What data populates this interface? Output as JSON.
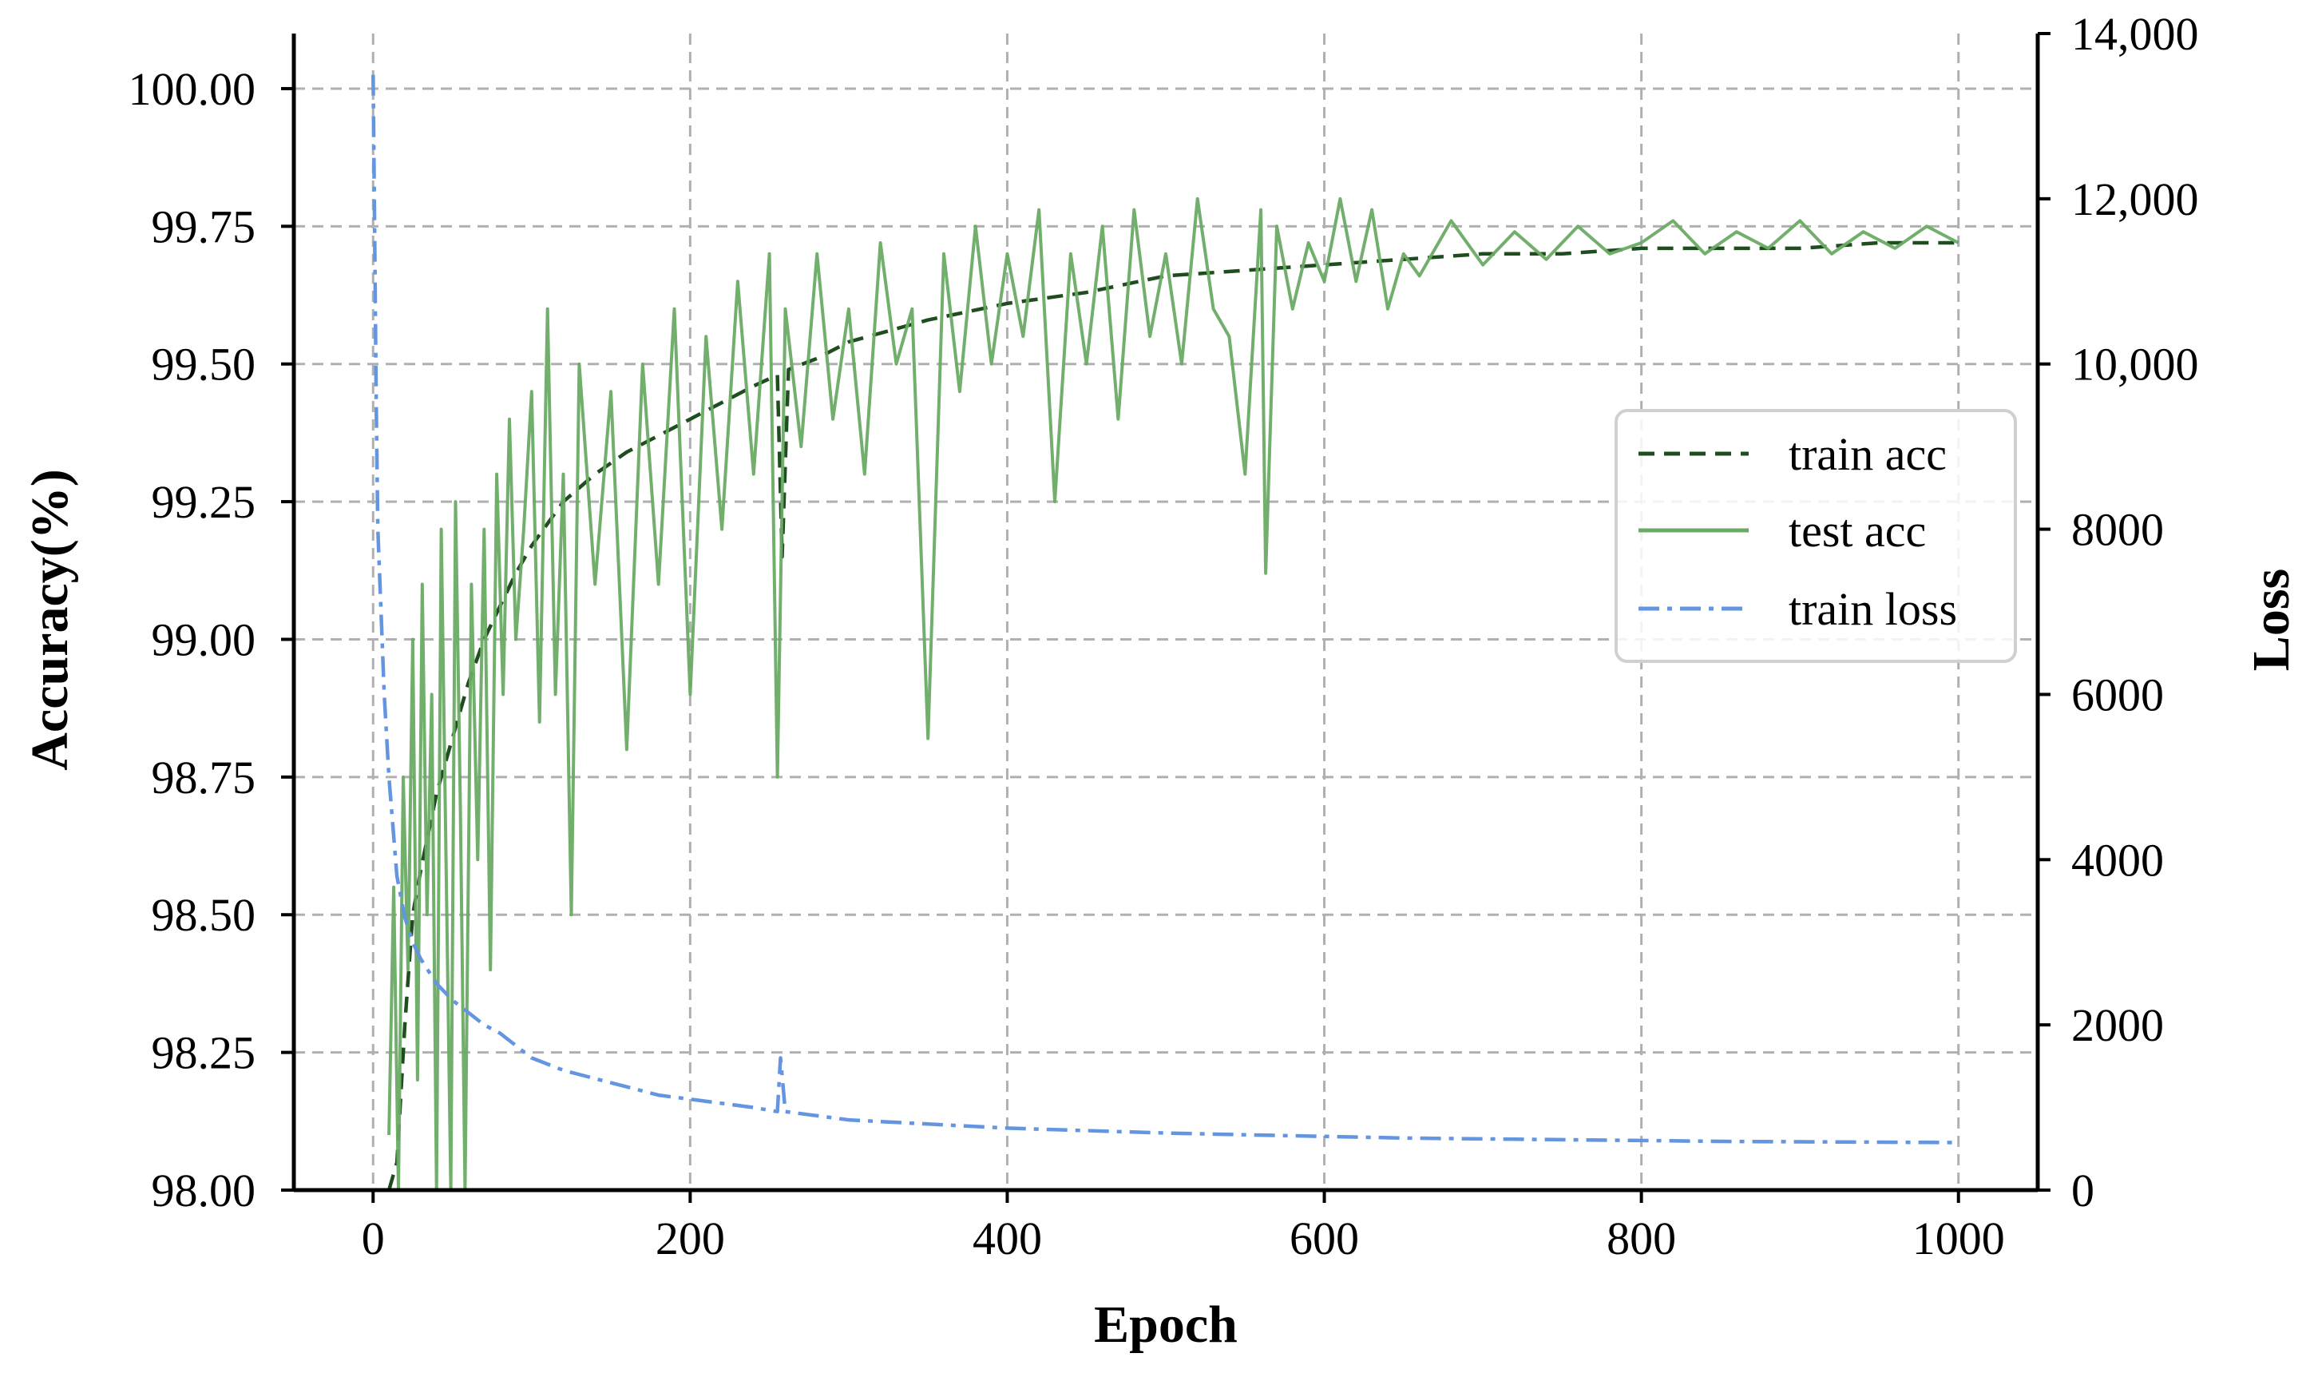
{
  "chart_data": {
    "type": "line",
    "xlabel": "Epoch",
    "ylabel": "Accuracy(%)",
    "y2label": "Loss",
    "xlim": [
      -50,
      1050
    ],
    "ylim": [
      98.0,
      100.1
    ],
    "y2lim": [
      0,
      14000
    ],
    "x_ticks": [
      0,
      200,
      400,
      600,
      800,
      1000
    ],
    "x_tick_labels": [
      "0",
      "200",
      "400",
      "600",
      "800",
      "1000"
    ],
    "y_ticks": [
      98.0,
      98.25,
      98.5,
      98.75,
      99.0,
      99.25,
      99.5,
      99.75,
      100.0
    ],
    "y_tick_labels": [
      "98.00",
      "98.25",
      "98.50",
      "98.75",
      "99.00",
      "99.25",
      "99.50",
      "99.75",
      "100.00"
    ],
    "y2_ticks": [
      0,
      2000,
      4000,
      6000,
      8000,
      10000,
      12000,
      14000
    ],
    "y2_tick_labels": [
      "0",
      "2000",
      "4000",
      "6000",
      "8000",
      "10,000",
      "12,000",
      "14,000"
    ],
    "grid": true,
    "legend_position": "center-right",
    "series": [
      {
        "name": "train acc",
        "axis": "left",
        "color": "#1f4d1f",
        "style": "dashed",
        "x": [
          10,
          15,
          20,
          25,
          30,
          35,
          40,
          50,
          60,
          70,
          80,
          90,
          100,
          120,
          140,
          160,
          180,
          200,
          220,
          240,
          255,
          258,
          262,
          280,
          300,
          350,
          400,
          450,
          500,
          550,
          600,
          650,
          700,
          750,
          800,
          850,
          900,
          950,
          1000
        ],
        "y": [
          97.9,
          98.05,
          98.3,
          98.5,
          98.58,
          98.65,
          98.72,
          98.82,
          98.92,
          99.0,
          99.06,
          99.12,
          99.17,
          99.25,
          99.3,
          99.34,
          99.37,
          99.4,
          99.43,
          99.46,
          99.48,
          99.15,
          99.49,
          99.51,
          99.54,
          99.58,
          99.61,
          99.63,
          99.66,
          99.67,
          99.68,
          99.69,
          99.7,
          99.7,
          99.71,
          99.71,
          99.71,
          99.72,
          99.72
        ]
      },
      {
        "name": "test acc",
        "axis": "left",
        "color": "#6aaa64",
        "style": "solid",
        "x": [
          10,
          13,
          16,
          19,
          22,
          25,
          28,
          31,
          34,
          37,
          40,
          43,
          46,
          49,
          52,
          55,
          58,
          62,
          66,
          70,
          74,
          78,
          82,
          86,
          90,
          95,
          100,
          105,
          110,
          115,
          120,
          125,
          130,
          140,
          150,
          160,
          170,
          180,
          190,
          200,
          210,
          220,
          230,
          240,
          250,
          255,
          260,
          270,
          280,
          290,
          300,
          310,
          320,
          330,
          340,
          350,
          360,
          370,
          380,
          390,
          400,
          410,
          420,
          430,
          440,
          450,
          460,
          470,
          480,
          490,
          500,
          510,
          520,
          530,
          540,
          550,
          560,
          563,
          570,
          580,
          590,
          600,
          610,
          620,
          630,
          640,
          650,
          660,
          680,
          700,
          720,
          740,
          760,
          780,
          800,
          820,
          840,
          860,
          880,
          900,
          920,
          940,
          960,
          980,
          1000
        ],
        "y": [
          98.1,
          98.55,
          98.0,
          98.75,
          98.4,
          99.0,
          98.2,
          99.1,
          98.5,
          98.9,
          98.0,
          99.2,
          98.6,
          98.0,
          99.25,
          98.7,
          98.0,
          99.1,
          98.6,
          99.2,
          98.4,
          99.3,
          98.9,
          99.4,
          99.0,
          99.2,
          99.45,
          98.85,
          99.6,
          98.9,
          99.3,
          98.5,
          99.5,
          99.1,
          99.45,
          98.8,
          99.5,
          99.1,
          99.6,
          98.9,
          99.55,
          99.2,
          99.65,
          99.3,
          99.7,
          98.75,
          99.6,
          99.35,
          99.7,
          99.4,
          99.6,
          99.3,
          99.72,
          99.5,
          99.6,
          98.82,
          99.7,
          99.45,
          99.75,
          99.5,
          99.7,
          99.55,
          99.78,
          99.25,
          99.7,
          99.5,
          99.75,
          99.4,
          99.78,
          99.55,
          99.7,
          99.5,
          99.8,
          99.6,
          99.55,
          99.3,
          99.78,
          99.12,
          99.75,
          99.6,
          99.72,
          99.65,
          99.8,
          99.65,
          99.78,
          99.6,
          99.7,
          99.66,
          99.76,
          99.68,
          99.74,
          99.69,
          99.75,
          99.7,
          99.72,
          99.76,
          99.7,
          99.74,
          99.71,
          99.76,
          99.7,
          99.74,
          99.71,
          99.75,
          99.72
        ]
      },
      {
        "name": "train loss",
        "axis": "right",
        "color": "#6495e0",
        "style": "dashdot",
        "x": [
          0,
          1,
          2,
          3,
          5,
          7,
          10,
          15,
          20,
          25,
          30,
          40,
          50,
          60,
          70,
          80,
          90,
          100,
          120,
          140,
          160,
          180,
          200,
          220,
          240,
          255,
          257,
          260,
          280,
          300,
          350,
          400,
          450,
          500,
          550,
          600,
          650,
          700,
          750,
          800,
          850,
          900,
          950,
          1000
        ],
        "y": [
          13500,
          11500,
          9500,
          8000,
          7000,
          6000,
          5000,
          3800,
          3300,
          3000,
          2800,
          2500,
          2300,
          2150,
          2000,
          1900,
          1750,
          1600,
          1450,
          1350,
          1250,
          1150,
          1100,
          1050,
          1000,
          950,
          1600,
          950,
          900,
          850,
          800,
          750,
          720,
          690,
          670,
          650,
          630,
          620,
          610,
          600,
          590,
          585,
          580,
          575
        ]
      }
    ]
  }
}
